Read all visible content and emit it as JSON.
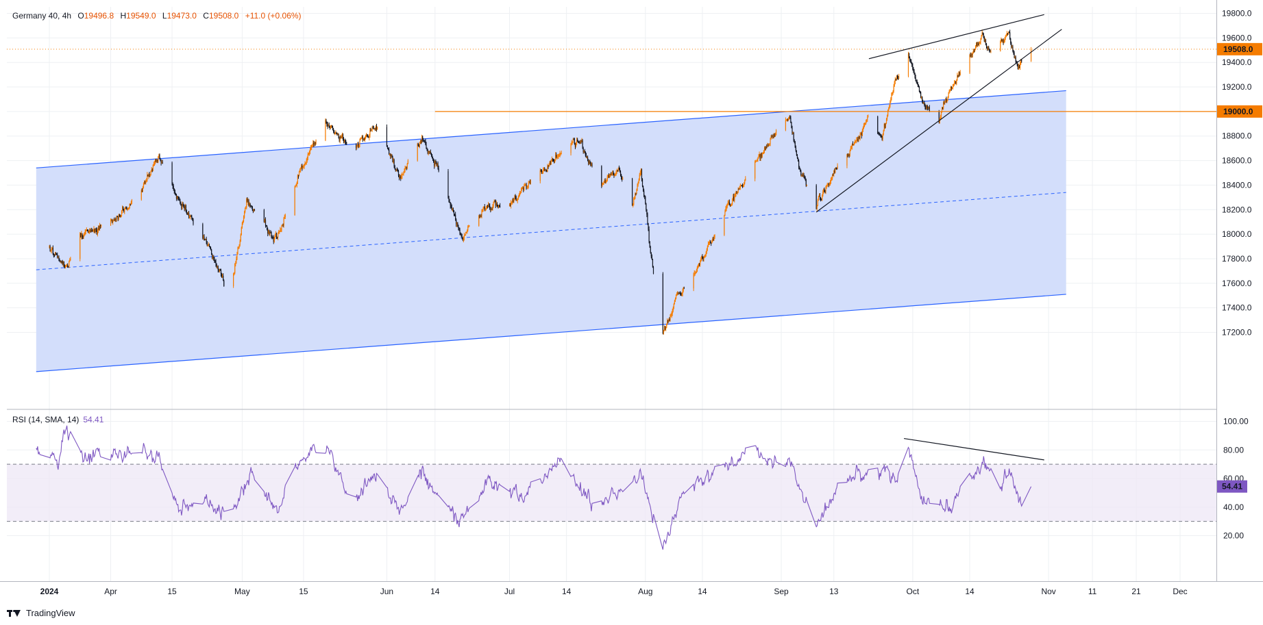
{
  "header": {
    "symbol": "Germany 40, 4h",
    "o_label": "O",
    "o_value": "19496.8",
    "h_label": "H",
    "h_value": "19549.0",
    "l_label": "L",
    "l_value": "19473.0",
    "c_label": "C",
    "c_value": "19508.0",
    "change": "+11.0 (+0.06%)"
  },
  "rsi_header": {
    "label": "RSI (14, SMA, 14)",
    "value": "54.41"
  },
  "branding": {
    "text": "TradingView"
  },
  "colors": {
    "up": "#f57c00",
    "down": "#131722",
    "channel_line": "#2962ff",
    "channel_fill": "#d1dcfb",
    "level": "#f57c00",
    "rsi": "#7e57c2",
    "rsi_band": "#ede7f6",
    "grid": "#eef0f3"
  },
  "chart_data": [
    {
      "type": "candlestick",
      "title": "Germany 40, 4h",
      "x_ticks": [
        "2024",
        "Apr",
        "15",
        "May",
        "15",
        "Jun",
        "14",
        "Jul",
        "14",
        "Aug",
        "14",
        "Sep",
        "13",
        "Oct",
        "14",
        "Nov",
        "11",
        "21",
        "Dec"
      ],
      "x_tick_dates": [
        "2024-03-18",
        "2024-04-01",
        "2024-04-15",
        "2024-05-01",
        "2024-05-15",
        "2024-06-03",
        "2024-06-14",
        "2024-07-01",
        "2024-07-14",
        "2024-08-01",
        "2024-08-14",
        "2024-09-01",
        "2024-09-13",
        "2024-10-01",
        "2024-10-14",
        "2024-11-01",
        "2024-11-11",
        "2024-11-21",
        "2024-12-01"
      ],
      "y_ticks": [
        "19800.0",
        "19600.0",
        "19400.0",
        "19200.0",
        "19000.0",
        "18800.0",
        "18600.0",
        "18400.0",
        "18200.0",
        "18000.0",
        "17800.0",
        "17600.0",
        "17400.0",
        "17200.0"
      ],
      "ylim": [
        17090,
        19860
      ],
      "price_anchors": [
        [
          "2024-03-18",
          17900
        ],
        [
          "2024-03-22",
          17720
        ],
        [
          "2024-03-25",
          18000
        ],
        [
          "2024-04-01",
          18100
        ],
        [
          "2024-04-08",
          18350
        ],
        [
          "2024-04-12",
          18640
        ],
        [
          "2024-04-16",
          18300
        ],
        [
          "2024-04-24",
          17860
        ],
        [
          "2024-04-28",
          17490
        ],
        [
          "2024-05-02",
          18250
        ],
        [
          "2024-05-09",
          17950
        ],
        [
          "2024-05-14",
          18500
        ],
        [
          "2024-05-20",
          18920
        ],
        [
          "2024-05-26",
          18700
        ],
        [
          "2024-06-01",
          18880
        ],
        [
          "2024-06-06",
          18450
        ],
        [
          "2024-06-11",
          18780
        ],
        [
          "2024-06-15",
          18500
        ],
        [
          "2024-06-20",
          17980
        ],
        [
          "2024-06-26",
          18230
        ],
        [
          "2024-07-01",
          18250
        ],
        [
          "2024-07-08",
          18500
        ],
        [
          "2024-07-13",
          18680
        ],
        [
          "2024-07-17",
          18760
        ],
        [
          "2024-07-22",
          18400
        ],
        [
          "2024-07-26",
          18520
        ],
        [
          "2024-07-29",
          18200
        ],
        [
          "2024-07-31",
          18550
        ],
        [
          "2024-08-02",
          17900
        ],
        [
          "2024-08-05",
          17220
        ],
        [
          "2024-08-09",
          17520
        ],
        [
          "2024-08-14",
          17800
        ],
        [
          "2024-08-19",
          18150
        ],
        [
          "2024-08-24",
          18450
        ],
        [
          "2024-08-30",
          18800
        ],
        [
          "2024-09-03",
          18950
        ],
        [
          "2024-09-05",
          18550
        ],
        [
          "2024-09-09",
          18220
        ],
        [
          "2024-09-13",
          18500
        ],
        [
          "2024-09-18",
          18750
        ],
        [
          "2024-09-21",
          18950
        ],
        [
          "2024-09-24",
          18780
        ],
        [
          "2024-09-27",
          19250
        ],
        [
          "2024-09-30",
          19480
        ],
        [
          "2024-10-03",
          19100
        ],
        [
          "2024-10-07",
          18950
        ],
        [
          "2024-10-10",
          19200
        ],
        [
          "2024-10-14",
          19450
        ],
        [
          "2024-10-17",
          19610
        ],
        [
          "2024-10-19",
          19470
        ],
        [
          "2024-10-23",
          19650
        ],
        [
          "2024-10-25",
          19350
        ],
        [
          "2024-10-28",
          19508
        ]
      ],
      "last_price": "19508.0",
      "levels": [
        {
          "price": 19000,
          "label": "19000.0"
        }
      ],
      "channel": {
        "upper": [
          [
            "2024-03-15",
            18540
          ],
          [
            "2024-11-05",
            19170
          ]
        ],
        "middle": [
          [
            "2024-03-15",
            17710
          ],
          [
            "2024-11-05",
            18340
          ]
        ],
        "lower": [
          [
            "2024-03-15",
            16880
          ],
          [
            "2024-11-05",
            17510
          ]
        ]
      },
      "trendlines": [
        [
          [
            "2024-09-21",
            19430
          ],
          [
            "2024-10-31",
            19790
          ]
        ],
        [
          [
            "2024-09-09",
            18180
          ],
          [
            "2024-11-04",
            19670
          ]
        ]
      ]
    },
    {
      "type": "line",
      "title": "RSI (14, SMA, 14)",
      "y_ticks": [
        "100.00",
        "80.00",
        "60.00",
        "40.00",
        "20.00"
      ],
      "ylim": [
        5,
        103
      ],
      "bands": [
        30,
        70
      ],
      "last_value": "54.41",
      "rsi_anchors": [
        [
          "2024-03-15",
          80
        ],
        [
          "2024-03-20",
          72
        ],
        [
          "2024-03-22",
          93
        ],
        [
          "2024-03-27",
          75
        ],
        [
          "2024-04-05",
          78
        ],
        [
          "2024-04-12",
          75
        ],
        [
          "2024-04-16",
          40
        ],
        [
          "2024-04-24",
          42
        ],
        [
          "2024-04-28",
          32
        ],
        [
          "2024-05-03",
          62
        ],
        [
          "2024-05-09",
          38
        ],
        [
          "2024-05-14",
          72
        ],
        [
          "2024-05-19",
          86
        ],
        [
          "2024-05-26",
          48
        ],
        [
          "2024-06-01",
          62
        ],
        [
          "2024-06-06",
          34
        ],
        [
          "2024-06-11",
          64
        ],
        [
          "2024-06-19",
          30
        ],
        [
          "2024-06-26",
          58
        ],
        [
          "2024-07-04",
          46
        ],
        [
          "2024-07-13",
          74
        ],
        [
          "2024-07-20",
          40
        ],
        [
          "2024-07-31",
          62
        ],
        [
          "2024-08-05",
          14
        ],
        [
          "2024-08-10",
          50
        ],
        [
          "2024-08-20",
          70
        ],
        [
          "2024-08-25",
          80
        ],
        [
          "2024-08-31",
          70
        ],
        [
          "2024-09-03",
          72
        ],
        [
          "2024-09-07",
          40
        ],
        [
          "2024-09-09",
          24
        ],
        [
          "2024-09-14",
          58
        ],
        [
          "2024-09-22",
          65
        ],
        [
          "2024-09-28",
          58
        ],
        [
          "2024-09-30",
          80
        ],
        [
          "2024-10-03",
          46
        ],
        [
          "2024-10-08",
          38
        ],
        [
          "2024-10-14",
          58
        ],
        [
          "2024-10-17",
          70
        ],
        [
          "2024-10-21",
          55
        ],
        [
          "2024-10-23",
          66
        ],
        [
          "2024-10-26",
          36
        ],
        [
          "2024-10-28",
          54.41
        ]
      ],
      "trendline": [
        [
          "2024-09-29",
          88
        ],
        [
          "2024-10-31",
          73
        ]
      ]
    }
  ]
}
